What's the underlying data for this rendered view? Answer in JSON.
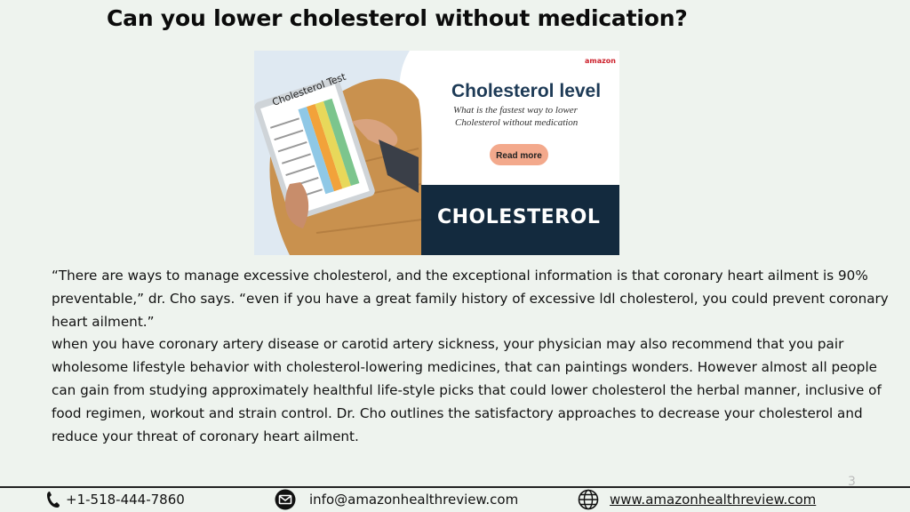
{
  "slide": {
    "title": "Can you lower cholesterol without medication?",
    "page_number": "3"
  },
  "banner": {
    "brand": "amazon",
    "headline": "Cholesterol level",
    "subtitle_line1": "What is the fastest way to lower",
    "subtitle_line2": "Cholesterol without medication",
    "cta_label": "Read more",
    "footer_word": "CHOLESTEROL",
    "clipboard_label": "Cholesterol Test",
    "colors": {
      "navy": "#132a3e",
      "cta": "#f3a98c",
      "headline": "#1d3a56"
    }
  },
  "body": {
    "paragraph1": "“There are ways to manage excessive cholesterol, and the exceptional information is that coronary heart ailment is 90% preventable,” dr. Cho says. “even if you have a great family history of excessive ldl cholesterol, you could prevent coronary heart ailment.”",
    "paragraph2": "when you have coronary artery disease or carotid artery sickness, your physician may also recommend that you pair wholesome lifestyle behavior with cholesterol-lowering medicines, that can paintings wonders. However almost all people can gain from studying approximately healthful life-style picks that could lower cholesterol the herbal manner, inclusive of food regimen, workout and strain control. Dr. Cho outlines the satisfactory approaches to decrease your cholesterol and reduce your threat of coronary heart ailment."
  },
  "footer": {
    "phone": "+1-518-444-7860",
    "email": "info@amazonhealthreview.com",
    "website": "www.amazonhealthreview.com",
    "icons": [
      "phone-icon",
      "email-icon",
      "globe-icon"
    ]
  }
}
